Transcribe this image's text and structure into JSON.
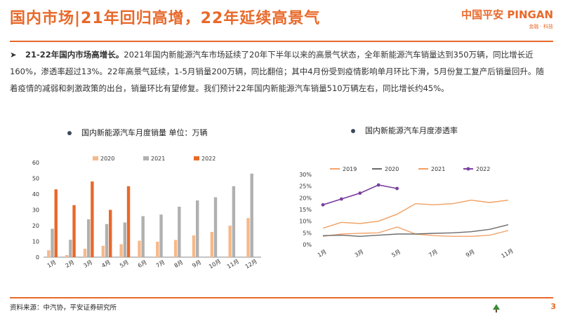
{
  "header": {
    "title": "国内市场|21年回归高增，22年延续高景气",
    "logo_main": "中国平安 PINGAN",
    "logo_sub": "金融 · 科技"
  },
  "bullet": {
    "lead": "21-22年国内市场高增长。",
    "text": "2021年国内新能源汽车市场延续了20年下半年以来的高景气状态，全年新能源汽车销量达到350万辆，同比增长近160%，渗透率超过13%。22年高景气延续，1-5月销量200万辆，同比翻倍；其中4月份受到疫情影响单月环比下滑，5月份复工复产后销量回升。随着疫情的减弱和刺激政策的出台，销量环比有望修复。我们预计22年国内新能源汽车销量510万辆左右，同比增长约45%。"
  },
  "footer": {
    "source": "资料来源：中汽协，平安证券研究所",
    "page": "3"
  },
  "colors": {
    "accent": "#e8692a",
    "s2020": "#f6b98a",
    "s2021": "#b0b0b0",
    "s2022": "#e8692a",
    "l2019": "#f4a36a",
    "l2020": "#6b6b6b",
    "l2021": "#f0a060",
    "l2022": "#7b3fa0"
  },
  "chart_data": [
    {
      "type": "bar",
      "title": "国内新能源汽车月度销量 单位：万辆",
      "categories": [
        "1月",
        "2月",
        "3月",
        "4月",
        "5月",
        "6月",
        "7月",
        "8月",
        "9月",
        "10月",
        "11月",
        "12月"
      ],
      "ylim": [
        0,
        60
      ],
      "yticks": [
        0,
        10,
        20,
        30,
        40,
        50,
        60
      ],
      "legend_position": "top",
      "grid": false,
      "series": [
        {
          "name": "2020",
          "values": [
            4.4,
            1.3,
            5.3,
            7.2,
            8.2,
            10.4,
            9.8,
            10.9,
            13.8,
            16.0,
            20.0,
            24.8
          ]
        },
        {
          "name": "2021",
          "values": [
            18.0,
            11.0,
            24.0,
            21.0,
            22.0,
            26.0,
            27.0,
            32.0,
            36.0,
            38.0,
            45.0,
            53.0
          ]
        },
        {
          "name": "2022",
          "values": [
            43.0,
            33.0,
            48.0,
            30.0,
            45.0,
            null,
            null,
            null,
            null,
            null,
            null,
            null
          ]
        }
      ]
    },
    {
      "type": "line",
      "title": "国内新能源汽车月度渗透率",
      "x": [
        "1月",
        "2月",
        "3月",
        "4月",
        "5月",
        "6月",
        "7月",
        "8月",
        "9月",
        "10月",
        "11月",
        "12月"
      ],
      "xticks": [
        "1月",
        "3月",
        "5月",
        "7月",
        "9月",
        "11月"
      ],
      "ylim": [
        0,
        30
      ],
      "yticks": [
        "0%",
        "5%",
        "10%",
        "15%",
        "20%",
        "25%",
        "30%"
      ],
      "legend_position": "top",
      "grid": false,
      "series": [
        {
          "name": "2019",
          "values": [
            3.5,
            4.5,
            4.8,
            5.0,
            7.5,
            4.5,
            3.8,
            3.5,
            3.5,
            4.0,
            6.0,
            null
          ]
        },
        {
          "name": "2020",
          "values": [
            3.8,
            4.0,
            3.5,
            4.0,
            4.5,
            4.5,
            4.8,
            5.0,
            5.5,
            6.5,
            8.5,
            null
          ]
        },
        {
          "name": "2021",
          "values": [
            7.0,
            9.5,
            9.0,
            10.0,
            13.0,
            17.5,
            17.0,
            17.5,
            19.0,
            18.0,
            19.0,
            null
          ]
        },
        {
          "name": "2022",
          "values": [
            17.0,
            19.5,
            22.0,
            25.5,
            24.0,
            null,
            null,
            null,
            null,
            null,
            null,
            null
          ]
        }
      ]
    }
  ]
}
